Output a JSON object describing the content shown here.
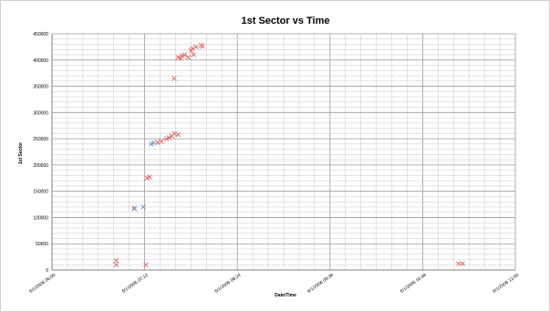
{
  "chart_data": {
    "type": "scatter",
    "title": "1st Sector vs Time",
    "xlabel": "Date/Time",
    "ylabel": "1st Sector",
    "xlim": [
      "6/1/2006 06:00",
      "6/1/2006 12:00"
    ],
    "ylim": [
      0,
      450000
    ],
    "x_ticks": [
      "6/1/2006 06:00",
      "6/1/2006 07:12",
      "6/1/2006 08:24",
      "6/1/2006 09:36",
      "6/1/2006 10:48",
      "6/1/2006 12:00"
    ],
    "y_ticks": [
      0,
      50000,
      100000,
      150000,
      200000,
      250000,
      300000,
      350000,
      400000,
      450000
    ],
    "grid": true,
    "marker": "x",
    "series": [
      {
        "color": "#E06060",
        "points": [
          {
            "x": "6/1/2006 06:50",
            "y": 10000
          },
          {
            "x": "6/1/2006 06:50",
            "y": 18000
          },
          {
            "x": "6/1/2006 07:04",
            "y": 118000
          },
          {
            "x": "6/1/2006 07:13",
            "y": 10000
          },
          {
            "x": "6/1/2006 07:14",
            "y": 175000
          },
          {
            "x": "6/1/2006 07:16",
            "y": 177000
          },
          {
            "x": "6/1/2006 07:22",
            "y": 243000
          },
          {
            "x": "6/1/2006 07:25",
            "y": 245000
          },
          {
            "x": "6/1/2006 07:29",
            "y": 250000
          },
          {
            "x": "6/1/2006 07:31",
            "y": 252000
          },
          {
            "x": "6/1/2006 07:33",
            "y": 255000
          },
          {
            "x": "6/1/2006 07:35",
            "y": 260000
          },
          {
            "x": "6/1/2006 07:38",
            "y": 258000
          },
          {
            "x": "6/1/2006 07:35",
            "y": 365000
          },
          {
            "x": "6/1/2006 07:38",
            "y": 405000
          },
          {
            "x": "6/1/2006 07:40",
            "y": 403000
          },
          {
            "x": "6/1/2006 07:41",
            "y": 408000
          },
          {
            "x": "6/1/2006 07:43",
            "y": 410000
          },
          {
            "x": "6/1/2006 07:46",
            "y": 405000
          },
          {
            "x": "6/1/2006 07:48",
            "y": 418000
          },
          {
            "x": "6/1/2006 07:49",
            "y": 422000
          },
          {
            "x": "6/1/2006 07:50",
            "y": 410000
          },
          {
            "x": "6/1/2006 07:52",
            "y": 425000
          },
          {
            "x": "6/1/2006 07:56",
            "y": 428000
          },
          {
            "x": "6/1/2006 07:57",
            "y": 426000
          },
          {
            "x": "6/1/2006 11:16",
            "y": 12000
          },
          {
            "x": "6/1/2006 11:19",
            "y": 12000
          }
        ]
      },
      {
        "color": "#6A8FD0",
        "points": [
          {
            "x": "6/1/2006 07:04",
            "y": 117000
          },
          {
            "x": "6/1/2006 07:11",
            "y": 120000
          },
          {
            "x": "6/1/2006 07:17",
            "y": 240000
          },
          {
            "x": "6/1/2006 07:19",
            "y": 242000
          }
        ]
      }
    ]
  }
}
